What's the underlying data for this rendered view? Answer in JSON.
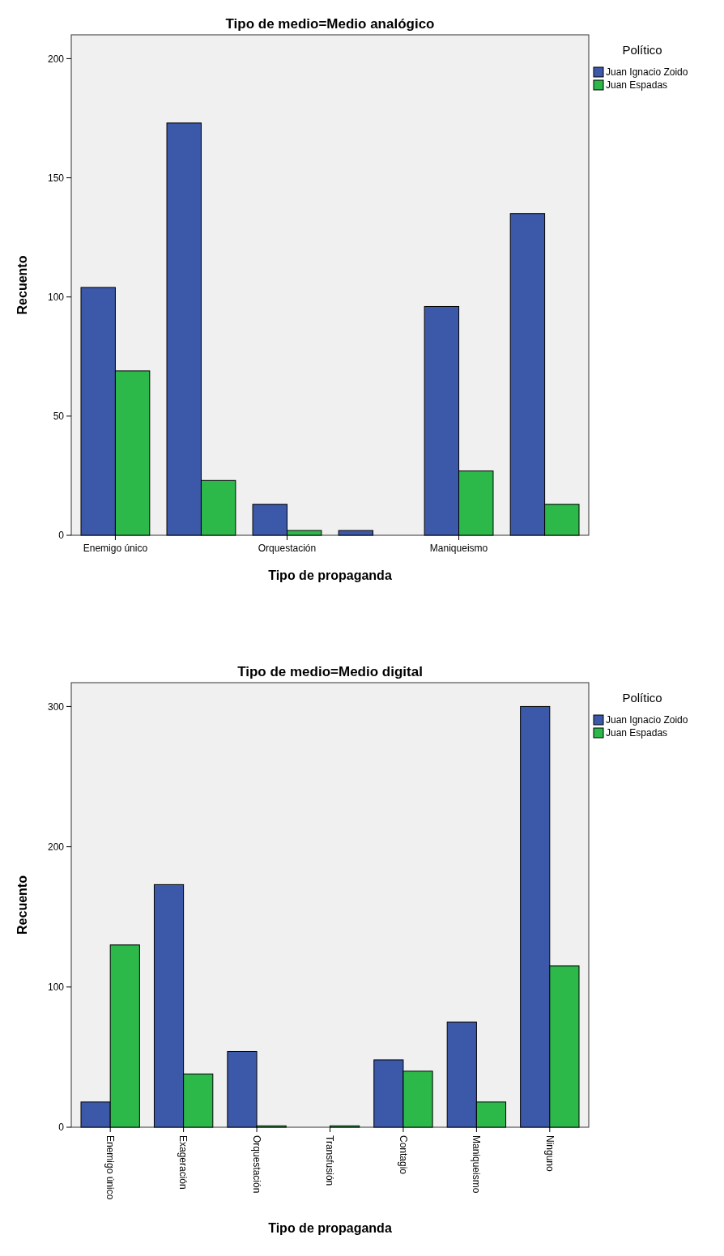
{
  "chart_data": [
    {
      "type": "bar",
      "title": "Tipo de medio=Medio analógico",
      "xlabel": "Tipo de propaganda",
      "ylabel": "Recuento",
      "legend_title": "Político",
      "legend": "right",
      "categories": [
        "Enemigo único",
        null,
        "Orquestación",
        null,
        "Maniqueismo",
        null
      ],
      "ylim": [
        0,
        210
      ],
      "yticks": [
        0,
        50,
        100,
        150,
        200
      ],
      "series": [
        {
          "name": "Juan Ignacio Zoido",
          "color": "#3c58a8",
          "values": [
            104,
            173,
            13,
            2,
            96,
            135
          ]
        },
        {
          "name": "Juan Espadas",
          "color": "#2db84a",
          "values": [
            69,
            23,
            2,
            null,
            27,
            13
          ]
        }
      ]
    },
    {
      "type": "bar",
      "title": "Tipo de medio=Medio digital",
      "xlabel": "Tipo de propaganda",
      "ylabel": "Recuento",
      "legend_title": "Político",
      "legend": "right",
      "categories": [
        "Enemigo único",
        "Exageración",
        "Orquestación",
        "Transfusión",
        "Contagio",
        "Maniqueismo",
        "Ninguno"
      ],
      "ylim": [
        0,
        317
      ],
      "yticks": [
        0,
        100,
        200,
        300
      ],
      "series": [
        {
          "name": "Juan Ignacio Zoido",
          "color": "#3c58a8",
          "values": [
            18,
            173,
            54,
            null,
            48,
            75,
            300
          ]
        },
        {
          "name": "Juan Espadas",
          "color": "#2db84a",
          "values": [
            130,
            38,
            1,
            1,
            40,
            18,
            115
          ]
        }
      ]
    }
  ]
}
